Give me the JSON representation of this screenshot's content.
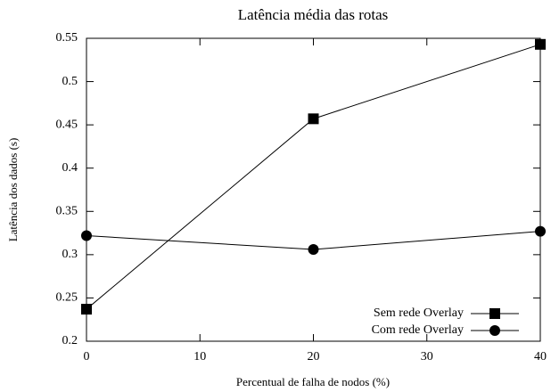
{
  "chart_data": {
    "type": "line",
    "title": "Latência média das rotas",
    "xlabel": "Percentual de falha de nodos (%)",
    "ylabel": "Latência dos dados (s)",
    "x": [
      0,
      20,
      40
    ],
    "series": [
      {
        "name": "Sem rede Overlay",
        "color": "#000000",
        "marker": "square",
        "values": [
          0.237,
          0.457,
          0.543
        ]
      },
      {
        "name": "Com rede Overlay",
        "color": "#000000",
        "marker": "circle",
        "values": [
          0.322,
          0.306,
          0.327
        ]
      }
    ],
    "xlim": [
      0,
      40
    ],
    "xticks": [
      0,
      10,
      20,
      30,
      40
    ],
    "ylim": [
      0.2,
      0.55
    ],
    "yticks": [
      0.2,
      0.25,
      0.3,
      0.35,
      0.4,
      0.45,
      0.5,
      0.55
    ],
    "grid": false,
    "legend": "lower right"
  }
}
